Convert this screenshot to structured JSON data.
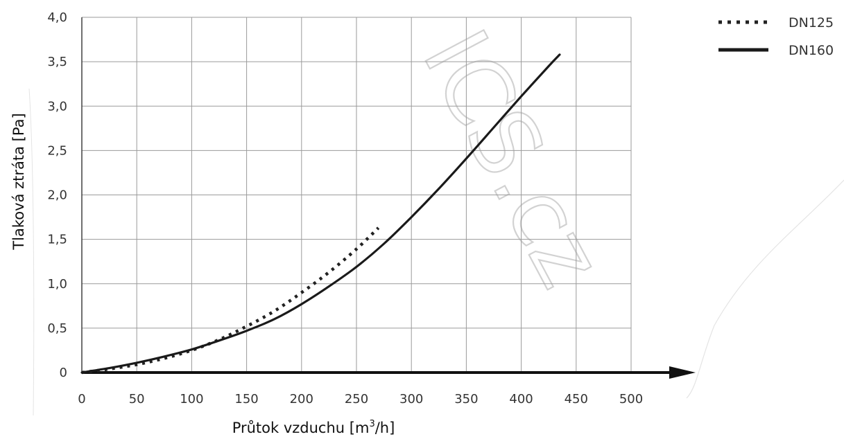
{
  "chart_data": {
    "type": "line",
    "xlabel_main": "Průtok vzduchu [m",
    "xlabel_sup": "3",
    "xlabel_end": "/h]",
    "ylabel": "Tlaková ztráta [Pa]",
    "xlim": [
      0,
      500
    ],
    "ylim": [
      0,
      4.0
    ],
    "x_ticks": [
      0,
      50,
      100,
      150,
      200,
      250,
      300,
      350,
      400,
      450,
      500
    ],
    "x_tick_labels": [
      "0",
      "50",
      "100",
      "150",
      "200",
      "250",
      "300",
      "350",
      "400",
      "450",
      "500"
    ],
    "y_ticks": [
      0,
      0.5,
      1.0,
      1.5,
      2.0,
      2.5,
      3.0,
      3.5,
      4.0
    ],
    "y_tick_labels": [
      "0",
      "0,5",
      "1,0",
      "1,5",
      "2,0",
      "2,5",
      "3,0",
      "3,5",
      "4,0"
    ],
    "grid": true,
    "legend_position": "top-right",
    "series": [
      {
        "name": "DN125",
        "style": "dotted",
        "color": "#222222",
        "points": [
          [
            0,
            0
          ],
          [
            25,
            0.04
          ],
          [
            50,
            0.09
          ],
          [
            75,
            0.16
          ],
          [
            100,
            0.25
          ],
          [
            125,
            0.37
          ],
          [
            150,
            0.52
          ],
          [
            175,
            0.69
          ],
          [
            200,
            0.9
          ],
          [
            225,
            1.13
          ],
          [
            250,
            1.39
          ],
          [
            270,
            1.63
          ]
        ]
      },
      {
        "name": "DN160",
        "style": "solid",
        "color": "#1a1a1a",
        "points": [
          [
            0,
            0
          ],
          [
            25,
            0.05
          ],
          [
            50,
            0.11
          ],
          [
            75,
            0.18
          ],
          [
            100,
            0.26
          ],
          [
            125,
            0.36
          ],
          [
            150,
            0.47
          ],
          [
            175,
            0.6
          ],
          [
            200,
            0.77
          ],
          [
            225,
            0.97
          ],
          [
            250,
            1.19
          ],
          [
            275,
            1.45
          ],
          [
            300,
            1.75
          ],
          [
            325,
            2.07
          ],
          [
            350,
            2.41
          ],
          [
            375,
            2.76
          ],
          [
            400,
            3.11
          ],
          [
            425,
            3.45
          ],
          [
            435,
            3.58
          ]
        ]
      }
    ],
    "watermark": "ICS.cz"
  }
}
